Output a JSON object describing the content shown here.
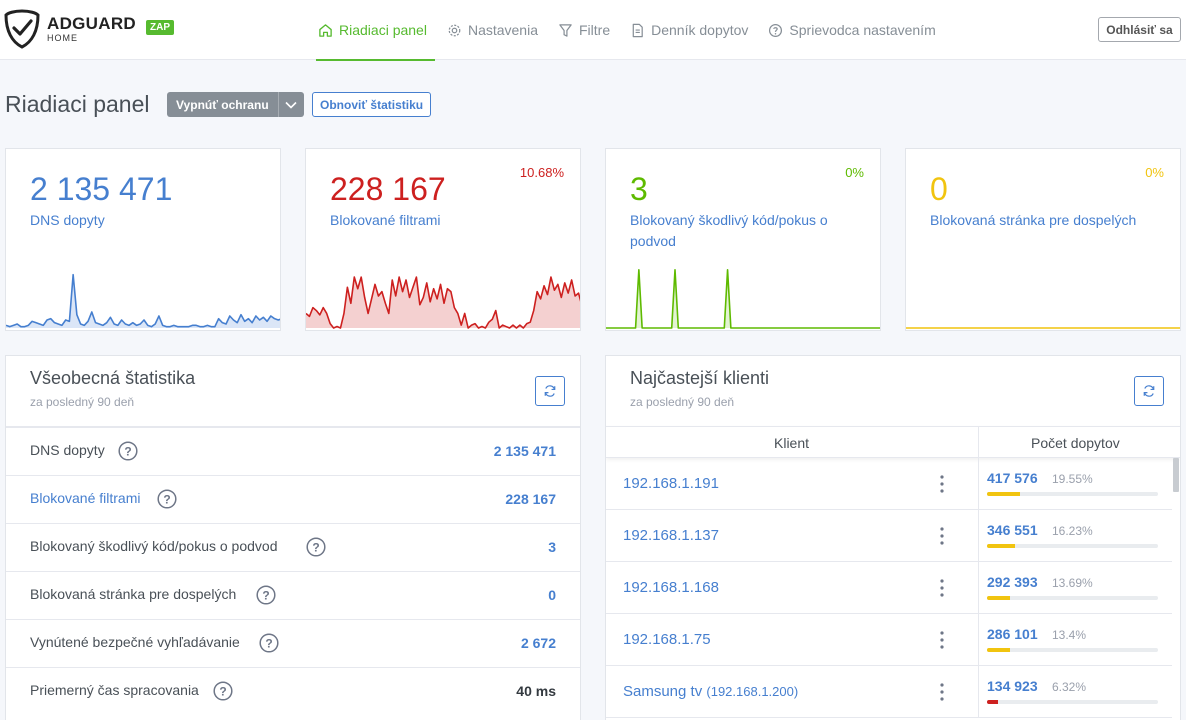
{
  "header": {
    "brand_title": "ADGUARD",
    "brand_sub": "HOME",
    "status_badge": "ZAP",
    "nav": [
      {
        "label": "Riadiaci panel",
        "icon": "home-icon",
        "active": true
      },
      {
        "label": "Nastavenia",
        "icon": "gear-icon",
        "active": false
      },
      {
        "label": "Filtre",
        "icon": "filter-icon",
        "active": false
      },
      {
        "label": "Denník dopytov",
        "icon": "document-icon",
        "active": false
      },
      {
        "label": "Sprievodca nastavením",
        "icon": "help-circle-icon",
        "active": false
      }
    ],
    "logout_label": "Odhlásiť sa"
  },
  "page": {
    "title": "Riadiaci panel",
    "toggle_protection_label": "Vypnúť ochranu",
    "refresh_stats_label": "Obnoviť štatistiku"
  },
  "colors": {
    "accent_green": "#56ba2f",
    "blue": "#467fcf",
    "red": "#cd201f",
    "green": "#5eba00",
    "yellow": "#f1c40f"
  },
  "stat_cards": [
    {
      "value": "2 135 471",
      "label": "DNS dopyty",
      "percent": "",
      "color": "#467fcf",
      "fill": "#dbe6f7"
    },
    {
      "value": "228 167",
      "label": "Blokované filtrami",
      "percent": "10.68%",
      "color": "#cd201f",
      "fill": "#f4d0d0"
    },
    {
      "value": "3",
      "label": "Blokovaný škodlivý kód/pokus o podvod",
      "percent": "0%",
      "color": "#5eba00",
      "fill": "#e3f3d3"
    },
    {
      "value": "0",
      "label": "Blokovaná stránka pre dospelých",
      "percent": "0%",
      "color": "#f1c40f",
      "fill": "#fdf4cf"
    }
  ],
  "chart_data": [
    {
      "type": "area",
      "series": [
        {
          "values": [
            2,
            1,
            2,
            3,
            1,
            1,
            2,
            5,
            4,
            3,
            2,
            6,
            7,
            4,
            3,
            2,
            6,
            5,
            40,
            10,
            3,
            2,
            5,
            12,
            4,
            3,
            2,
            4,
            8,
            3,
            2,
            6,
            3,
            2,
            4,
            2,
            3,
            6,
            2,
            1,
            3,
            9,
            2,
            1,
            1,
            2,
            1,
            1,
            1,
            1,
            2,
            2,
            1,
            1,
            2,
            1,
            1,
            7,
            4,
            3,
            9,
            6,
            4,
            10,
            5,
            7,
            4,
            9,
            6,
            8,
            5,
            9,
            7,
            6,
            7
          ]
        }
      ],
      "ylim": [
        0,
        48
      ]
    },
    {
      "type": "area",
      "series": [
        {
          "values": [
            10,
            8,
            14,
            12,
            9,
            14,
            10,
            3,
            0,
            1,
            0,
            10,
            28,
            17,
            35,
            27,
            35,
            21,
            10,
            20,
            30,
            22,
            25,
            17,
            10,
            33,
            22,
            35,
            25,
            33,
            21,
            28,
            35,
            16,
            21,
            31,
            18,
            27,
            20,
            30,
            17,
            27,
            25,
            14,
            10,
            2,
            10,
            0,
            2,
            3,
            0,
            1,
            0,
            4,
            6,
            12,
            0,
            2,
            1,
            0,
            2,
            0,
            2,
            0,
            3,
            4,
            12,
            25,
            20,
            29,
            23,
            35,
            26,
            30,
            21,
            31,
            24,
            33,
            22,
            24,
            15
          ]
        }
      ],
      "ylim": [
        0,
        44
      ]
    },
    {
      "type": "area",
      "series": [
        {
          "values": [
            0,
            0,
            0,
            0,
            0,
            0,
            0,
            0,
            0,
            0,
            1,
            0,
            0,
            0,
            0,
            0,
            0,
            0,
            0,
            0,
            0,
            1,
            0,
            0,
            0,
            0,
            0,
            0,
            0,
            0,
            0,
            0,
            0,
            0,
            0,
            0,
            0,
            1,
            0,
            0,
            0,
            0,
            0,
            0,
            0,
            0,
            0,
            0,
            0,
            0,
            0,
            0,
            0,
            0,
            0,
            0,
            0,
            0,
            0,
            0,
            0,
            0,
            0,
            0,
            0,
            0,
            0,
            0,
            0,
            0,
            0,
            0,
            0,
            0,
            0,
            0,
            0,
            0,
            0,
            0,
            0,
            0,
            0,
            0,
            0
          ]
        }
      ],
      "ylim": [
        0,
        1.1
      ]
    },
    {
      "type": "area",
      "series": [
        {
          "values": [
            0,
            0,
            0,
            0,
            0,
            0,
            0,
            0,
            0,
            0,
            0,
            0,
            0,
            0,
            0,
            0,
            0,
            0,
            0,
            0,
            0,
            0,
            0,
            0,
            0,
            0,
            0,
            0,
            0,
            0,
            0,
            0,
            0,
            0,
            0,
            0,
            0,
            0,
            0,
            0,
            0,
            0,
            0,
            0,
            0,
            0,
            0,
            0,
            0,
            0,
            0,
            0,
            0,
            0,
            0,
            0,
            0,
            0,
            0,
            0,
            0,
            0,
            0,
            0,
            0,
            0,
            0,
            0,
            0,
            0,
            0,
            0,
            0,
            0,
            0,
            0,
            0,
            0,
            0,
            0,
            0,
            0,
            0,
            0,
            0
          ]
        }
      ],
      "ylim": [
        0,
        1
      ]
    }
  ],
  "general_stats": {
    "title": "Všeobecná štatistika",
    "subtitle": "za posledný 90 deň",
    "rows": [
      {
        "label": "DNS dopyty",
        "value": "2 135 471",
        "label_blue": false,
        "value_dark": false
      },
      {
        "label": "Blokované filtrami",
        "value": "228 167",
        "label_blue": true,
        "value_dark": false
      },
      {
        "label": "Blokovaný škodlivý kód/pokus o podvod",
        "value": "3",
        "label_blue": false,
        "value_dark": false
      },
      {
        "label": "Blokovaná stránka pre dospelých",
        "value": "0",
        "label_blue": false,
        "value_dark": false
      },
      {
        "label": "Vynútené bezpečné vyhľadávanie",
        "value": "2 672",
        "label_blue": false,
        "value_dark": false
      },
      {
        "label": "Priemerný čas spracovania",
        "value": "40 ms",
        "label_blue": false,
        "value_dark": true
      }
    ]
  },
  "top_clients": {
    "title": "Najčastejší klienti",
    "subtitle": "za posledný 90 deň",
    "col_client": "Klient",
    "col_count": "Počet dopytov",
    "rows": [
      {
        "name": "192.168.1.191",
        "ip": "",
        "count": "417 576",
        "percent": "19.55%",
        "share": 0.1955,
        "bar_color": "#f1c40f"
      },
      {
        "name": "192.168.1.137",
        "ip": "",
        "count": "346 551",
        "percent": "16.23%",
        "share": 0.1623,
        "bar_color": "#f1c40f"
      },
      {
        "name": "192.168.1.168",
        "ip": "",
        "count": "292 393",
        "percent": "13.69%",
        "share": 0.1369,
        "bar_color": "#f1c40f"
      },
      {
        "name": "192.168.1.75",
        "ip": "",
        "count": "286 101",
        "percent": "13.4%",
        "share": 0.134,
        "bar_color": "#f1c40f"
      },
      {
        "name": "Samsung tv",
        "ip": "(192.168.1.200)",
        "count": "134 923",
        "percent": "6.32%",
        "share": 0.0632,
        "bar_color": "#cd201f"
      }
    ]
  }
}
